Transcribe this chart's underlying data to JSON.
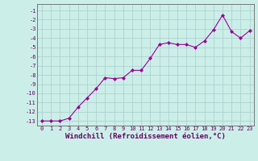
{
  "x": [
    0,
    1,
    2,
    3,
    4,
    5,
    6,
    7,
    8,
    9,
    10,
    11,
    12,
    13,
    14,
    15,
    16,
    17,
    18,
    19,
    20,
    21,
    22,
    23
  ],
  "y": [
    -13,
    -13,
    -13,
    -12.7,
    -11.5,
    -10.5,
    -9.5,
    -8.3,
    -8.4,
    -8.3,
    -7.5,
    -7.5,
    -6.2,
    -4.7,
    -4.5,
    -4.7,
    -4.7,
    -5.0,
    -4.3,
    -3.1,
    -1.5,
    -3.3,
    -4.0,
    -3.2
  ],
  "line_color": "#990099",
  "marker": "D",
  "marker_size": 2.0,
  "bg_color": "#cceee8",
  "grid_color": "#aacccc",
  "xlabel": "Windchill (Refroidissement éolien,°C)",
  "xlabel_fontsize": 6.5,
  "ytick_labels": [
    "-1",
    "-2",
    "-3",
    "-4",
    "-5",
    "-6",
    "-7",
    "-8",
    "-9",
    "-10",
    "-11",
    "-12",
    "-13"
  ],
  "ytick_values": [
    -1,
    -2,
    -3,
    -4,
    -5,
    -6,
    -7,
    -8,
    -9,
    -10,
    -11,
    -12,
    -13
  ],
  "xtick_values": [
    0,
    1,
    2,
    3,
    4,
    5,
    6,
    7,
    8,
    9,
    10,
    11,
    12,
    13,
    14,
    15,
    16,
    17,
    18,
    19,
    20,
    21,
    22,
    23
  ],
  "ylim": [
    -13.5,
    -0.3
  ],
  "xlim": [
    -0.5,
    23.5
  ],
  "tick_fontsize": 5.0,
  "linewidth": 0.8
}
